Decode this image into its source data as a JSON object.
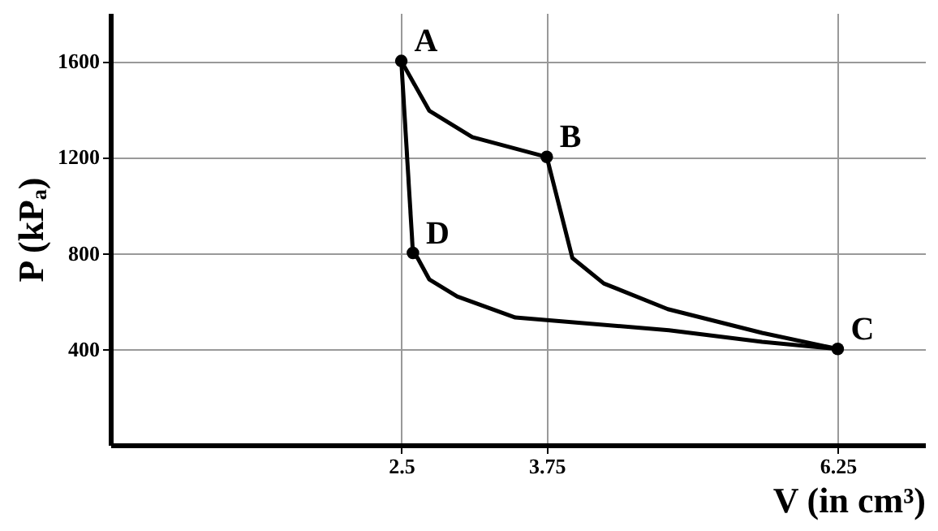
{
  "chart_data": {
    "type": "line",
    "xlabel": "V (in cm³)",
    "ylabel": "P (kPₐ)",
    "xlim": [
      0,
      7
    ],
    "ylim": [
      0,
      1800
    ],
    "xticks": [
      2.5,
      3.75,
      6.25
    ],
    "yticks": [
      400,
      800,
      1200,
      1600
    ],
    "grid": true,
    "marker": "none",
    "series": [
      {
        "color": "#000000",
        "x": [
          2.5,
          2.74,
          3.11,
          3.75
        ],
        "values": [
          1600,
          1393,
          1283,
          1200
        ]
      },
      {
        "color": "#000000",
        "x": [
          3.75,
          3.97,
          4.24,
          4.79,
          5.6,
          6.25
        ],
        "values": [
          1200,
          779,
          673,
          566,
          467,
          400
        ]
      },
      {
        "color": "#000000",
        "x": [
          2.6,
          2.64,
          2.74,
          2.98,
          3.48,
          4.8,
          5.6,
          6.25
        ],
        "values": [
          800,
          779,
          690,
          619,
          531,
          478,
          430,
          400
        ]
      },
      {
        "color": "#000000",
        "x": [
          2.5,
          2.6
        ],
        "values": [
          1600,
          800
        ]
      },
      {
        "type": "scatter",
        "color": "#000000",
        "marker": "circle",
        "x": [
          2.5,
          3.75,
          6.25,
          2.6
        ],
        "values": [
          1600,
          1200,
          400,
          800
        ]
      }
    ],
    "annotations": [
      {
        "text": "A",
        "x": 2.5,
        "y": 1600
      },
      {
        "text": "B",
        "x": 3.75,
        "y": 1200
      },
      {
        "text": "C",
        "x": 6.25,
        "y": 400
      },
      {
        "text": "D",
        "x": 2.6,
        "y": 800
      }
    ]
  }
}
